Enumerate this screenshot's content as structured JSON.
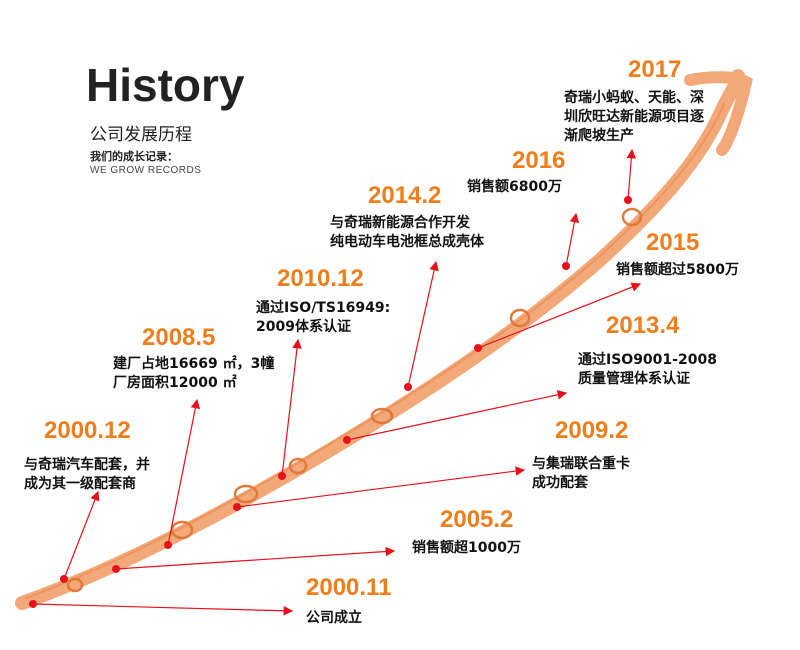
{
  "header": {
    "title": "History",
    "subtitle_cn": "公司发展历程",
    "tagline_cn": "我们的成长记录：",
    "tagline_en": "WE GROW RECORDS"
  },
  "colors": {
    "accent": "#ee7d1c",
    "path": "#f2a878",
    "arrow": "#e8101a"
  },
  "milestones": [
    {
      "year": "2000.11",
      "text": "公司成立"
    },
    {
      "year": "2000.12",
      "text": "与奇瑞汽车配套，并\n成为其一级配套商"
    },
    {
      "year": "2005.2",
      "text": "销售额超1000万"
    },
    {
      "year": "2008.5",
      "text": "建厂占地16669 ㎡，3幢\n厂房面积12000 ㎡"
    },
    {
      "year": "2009.2",
      "text": "与集瑞联合重卡\n成功配套"
    },
    {
      "year": "2010.12",
      "text": "通过ISO/TS16949:\n2009体系认证"
    },
    {
      "year": "2013.4",
      "text": "通过ISO9001-2008\n质量管理体系认证"
    },
    {
      "year": "2014.2",
      "text": "与奇瑞新能源合作开发\n纯电动车电池框总成壳体"
    },
    {
      "year": "2015",
      "text": "销售额超过5800万"
    },
    {
      "year": "2016",
      "text": "销售额6800万"
    },
    {
      "year": "2017",
      "text": "奇瑞小蚂蚁、天能、深\n圳欣旺达新能源项目逐\n渐爬坡生产"
    }
  ]
}
